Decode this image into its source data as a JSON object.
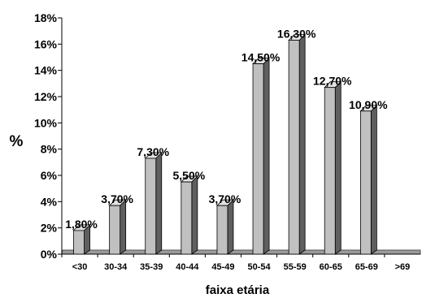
{
  "chart_data": {
    "type": "bar",
    "style": "3d-column",
    "categories": [
      "<30",
      "30-34",
      "35-39",
      "40-44",
      "45-49",
      "50-54",
      "55-59",
      "60-65",
      "65-69",
      ">69"
    ],
    "values": [
      1.8,
      3.7,
      7.3,
      5.5,
      3.7,
      14.5,
      16.3,
      12.7,
      10.9,
      0
    ],
    "data_labels": [
      "1,80%",
      "3,70%",
      "7,30%",
      "5,50%",
      "3,70%",
      "14,50%",
      "16,30%",
      "12,70%",
      "10,90%",
      ""
    ],
    "y_ticks": [
      "0%",
      "2%",
      "4%",
      "6%",
      "8%",
      "10%",
      "12%",
      "14%",
      "16%",
      "18%"
    ],
    "ylim": [
      0,
      18
    ],
    "xlabel": "faixa etária",
    "ylabel": "%",
    "grid": false,
    "legend": "none",
    "colors": {
      "bar_front": "#c0c0c0",
      "bar_side": "#5f5f5f",
      "bar_top": "#e2e2e2",
      "floor": "#9a9a9a",
      "axis": "#000000"
    }
  }
}
